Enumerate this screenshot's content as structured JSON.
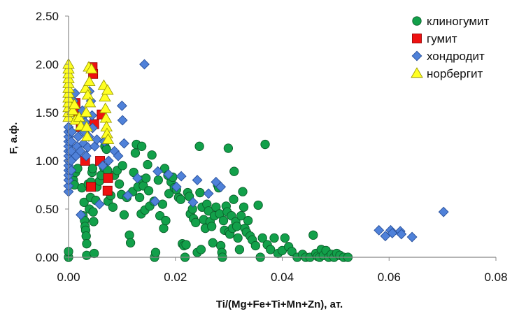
{
  "chart_data": {
    "type": "scatter",
    "xlabel": "Ti/(Mg+Fe+Ti+Mn+Zn), ат.",
    "ylabel": "F, а.ф.",
    "xlim": [
      0,
      0.08
    ],
    "ylim": [
      0,
      2.5
    ],
    "x_ticks": [
      "0.00",
      "0.02",
      "0.04",
      "0.06",
      "0.08"
    ],
    "y_ticks": [
      "0.00",
      "0.50",
      "1.00",
      "1.50",
      "2.00",
      "2.50"
    ],
    "x_tick_values": [
      0,
      0.02,
      0.04,
      0.06,
      0.08
    ],
    "y_tick_values": [
      0,
      0.5,
      1.0,
      1.5,
      2.0,
      2.5
    ],
    "grid": false,
    "legend_position": "top-right",
    "series": [
      {
        "name": "клиногумит",
        "marker": "circle",
        "color": "#12a04a",
        "stroke": "#0b5e2a",
        "points": [
          [
            0.0,
            0.0
          ],
          [
            0.0,
            0.06
          ],
          [
            0.0009,
            0.8
          ],
          [
            0.0011,
            0.75
          ],
          [
            0.0013,
            0.88
          ],
          [
            0.0017,
            0.92
          ],
          [
            0.0025,
            0.72
          ],
          [
            0.0027,
            0.43
          ],
          [
            0.0029,
            0.57
          ],
          [
            0.003,
            0.38
          ],
          [
            0.0031,
            0.32
          ],
          [
            0.0032,
            0.28
          ],
          [
            0.0033,
            0.22
          ],
          [
            0.0034,
            0.14
          ],
          [
            0.0034,
            0.02
          ],
          [
            0.0037,
            0.76
          ],
          [
            0.0039,
            0.5
          ],
          [
            0.0041,
            0.62
          ],
          [
            0.0042,
            0.78
          ],
          [
            0.0044,
            0.88
          ],
          [
            0.0045,
            0.92
          ],
          [
            0.0046,
            0.47
          ],
          [
            0.0047,
            0.37
          ],
          [
            0.0048,
            0.04
          ],
          [
            0.0051,
            0.59
          ],
          [
            0.0053,
            0.73
          ],
          [
            0.0058,
            0.79
          ],
          [
            0.0061,
            0.85
          ],
          [
            0.0066,
            0.93
          ],
          [
            0.0068,
            1.15
          ],
          [
            0.0071,
            1.12
          ],
          [
            0.0073,
            0.9
          ],
          [
            0.0074,
            0.58
          ],
          [
            0.0079,
            0.64
          ],
          [
            0.0083,
            0.52
          ],
          [
            0.0086,
            0.85
          ],
          [
            0.0091,
            0.9
          ],
          [
            0.0095,
            0.76
          ],
          [
            0.0099,
            0.65
          ],
          [
            0.0101,
            0.95
          ],
          [
            0.0104,
            0.44
          ],
          [
            0.0109,
            0.62
          ],
          [
            0.0114,
            0.23
          ],
          [
            0.0116,
            0.15
          ],
          [
            0.012,
            0.68
          ],
          [
            0.0122,
            0.88
          ],
          [
            0.0125,
            1.08
          ],
          [
            0.0127,
            1.17
          ],
          [
            0.013,
            0.73
          ],
          [
            0.0133,
            0.62
          ],
          [
            0.0136,
            0.45
          ],
          [
            0.0137,
            1.15
          ],
          [
            0.0138,
            0.8
          ],
          [
            0.014,
            0.74
          ],
          [
            0.0143,
            0.49
          ],
          [
            0.0145,
            0.82
          ],
          [
            0.0148,
            0.96
          ],
          [
            0.015,
            0.69
          ],
          [
            0.0152,
            0.53
          ],
          [
            0.0156,
            1.06
          ],
          [
            0.016,
            0.58
          ],
          [
            0.0161,
            0.0
          ],
          [
            0.0163,
            0.05
          ],
          [
            0.0168,
            0.8
          ],
          [
            0.0171,
            0.43
          ],
          [
            0.0176,
            0.55
          ],
          [
            0.0178,
            0.3
          ],
          [
            0.018,
            0.92
          ],
          [
            0.0182,
            0.38
          ],
          [
            0.0186,
            0.85
          ],
          [
            0.0188,
            0.66
          ],
          [
            0.0192,
            0.78
          ],
          [
            0.0195,
            0.83
          ],
          [
            0.0198,
            0.72
          ],
          [
            0.0202,
            0.7
          ],
          [
            0.0206,
            0.62
          ],
          [
            0.021,
            0.6
          ],
          [
            0.0213,
            0.14
          ],
          [
            0.0216,
            0.12
          ],
          [
            0.0218,
            0.0
          ],
          [
            0.022,
            0.13
          ],
          [
            0.0223,
            0.67
          ],
          [
            0.0226,
            0.63
          ],
          [
            0.0228,
            0.45
          ],
          [
            0.0232,
            0.5
          ],
          [
            0.0234,
            0.4
          ],
          [
            0.0238,
            0.36
          ],
          [
            0.0241,
            0.05
          ],
          [
            0.0245,
            1.15
          ],
          [
            0.0246,
            0.67
          ],
          [
            0.0248,
            0.08
          ],
          [
            0.025,
            0.52
          ],
          [
            0.0253,
            0.39
          ],
          [
            0.0256,
            0.3
          ],
          [
            0.0259,
            0.55
          ],
          [
            0.0262,
            0.48
          ],
          [
            0.0265,
            0.37
          ],
          [
            0.0268,
            0.32
          ],
          [
            0.027,
            0.15
          ],
          [
            0.0273,
            0.43
          ],
          [
            0.0276,
            0.52
          ],
          [
            0.0279,
            0.75
          ],
          [
            0.0281,
            0.72
          ],
          [
            0.0283,
            0.45
          ],
          [
            0.0285,
            0.12
          ],
          [
            0.0287,
            0.05
          ],
          [
            0.0288,
            0.0
          ],
          [
            0.029,
            0.38
          ],
          [
            0.0292,
            0.28
          ],
          [
            0.0295,
            0.53
          ],
          [
            0.0297,
            0.47
          ],
          [
            0.0299,
            1.13
          ],
          [
            0.03,
            0.26
          ],
          [
            0.0302,
            0.24
          ],
          [
            0.0305,
            0.43
          ],
          [
            0.0307,
            0.3
          ],
          [
            0.0309,
            0.6
          ],
          [
            0.031,
            0.89
          ],
          [
            0.0313,
            0.37
          ],
          [
            0.0315,
            0.32
          ],
          [
            0.0317,
            0.2
          ],
          [
            0.032,
            0.08
          ],
          [
            0.0323,
            0.43
          ],
          [
            0.0326,
            0.68
          ],
          [
            0.0328,
            0.52
          ],
          [
            0.033,
            0.3
          ],
          [
            0.0333,
            0.26
          ],
          [
            0.0336,
            0.38
          ],
          [
            0.034,
            0.22
          ],
          [
            0.0344,
            0.18
          ],
          [
            0.035,
            0.12
          ],
          [
            0.0355,
            0.54
          ],
          [
            0.0359,
            0.0
          ],
          [
            0.0363,
            0.2
          ],
          [
            0.0368,
            1.17
          ],
          [
            0.0372,
            0.13
          ],
          [
            0.0378,
            0.08
          ],
          [
            0.0385,
            0.2
          ],
          [
            0.0392,
            0.04
          ],
          [
            0.04,
            0.07
          ],
          [
            0.0405,
            0.2
          ],
          [
            0.0412,
            0.11
          ],
          [
            0.0418,
            0.06
          ],
          [
            0.0428,
            0.0
          ],
          [
            0.0438,
            0.03
          ],
          [
            0.0444,
            0.0
          ],
          [
            0.0452,
            0.0
          ],
          [
            0.0458,
            0.23
          ],
          [
            0.0463,
            0.04
          ],
          [
            0.0466,
            0.01
          ],
          [
            0.047,
            0.0
          ],
          [
            0.0473,
            0.08
          ],
          [
            0.0477,
            0.02
          ],
          [
            0.0482,
            0.07
          ],
          [
            0.0487,
            0.0
          ],
          [
            0.0492,
            0.03
          ],
          [
            0.0497,
            0.0
          ],
          [
            0.0502,
            0.04
          ],
          [
            0.0508,
            0.02
          ],
          [
            0.0515,
            0.0
          ],
          [
            0.0523,
            0.0
          ]
        ]
      },
      {
        "name": "гумит",
        "marker": "square",
        "color": "#ee1111",
        "stroke": "#990000",
        "points": [
          [
            0.0013,
            1.6
          ],
          [
            0.0018,
            1.5
          ],
          [
            0.0023,
            1.35
          ],
          [
            0.0031,
            1.0
          ],
          [
            0.0042,
            0.73
          ],
          [
            0.0045,
            1.97
          ],
          [
            0.0046,
            1.9
          ],
          [
            0.0048,
            1.38
          ],
          [
            0.0059,
            1.0
          ],
          [
            0.0062,
            1.48
          ],
          [
            0.0073,
            0.69
          ],
          [
            0.0074,
            0.82
          ]
        ]
      },
      {
        "name": "хондродит",
        "marker": "diamond",
        "color": "#4f81d9",
        "stroke": "#28509a",
        "points": [
          [
            0.0,
            0.68
          ],
          [
            0.0,
            0.74
          ],
          [
            0.0,
            0.8
          ],
          [
            0.0,
            0.85
          ],
          [
            0.0,
            0.9
          ],
          [
            0.0,
            0.95
          ],
          [
            0.0,
            1.0
          ],
          [
            0.0,
            1.05
          ],
          [
            0.0,
            1.1
          ],
          [
            0.0,
            1.15
          ],
          [
            0.0,
            1.2
          ],
          [
            0.0,
            1.25
          ],
          [
            0.0,
            1.3
          ],
          [
            0.0,
            1.35
          ],
          [
            0.0,
            1.92
          ],
          [
            0.0,
            1.97
          ],
          [
            0.0005,
            0.9
          ],
          [
            0.0005,
            1.0
          ],
          [
            0.0005,
            1.1
          ],
          [
            0.0005,
            1.2
          ],
          [
            0.0006,
            1.3
          ],
          [
            0.0009,
            1.62
          ],
          [
            0.0012,
            1.7
          ],
          [
            0.0014,
            1.05
          ],
          [
            0.0016,
            1.15
          ],
          [
            0.0018,
            1.25
          ],
          [
            0.0022,
            1.1
          ],
          [
            0.0023,
            0.44
          ],
          [
            0.0024,
            1.35
          ],
          [
            0.0026,
            1.45
          ],
          [
            0.0026,
            1.52
          ],
          [
            0.0028,
            1.18
          ],
          [
            0.0029,
            1.3
          ],
          [
            0.0031,
            1.4
          ],
          [
            0.0033,
            1.05
          ],
          [
            0.0036,
            1.14
          ],
          [
            0.0038,
            1.25
          ],
          [
            0.0039,
            1.72
          ],
          [
            0.0042,
            1.62
          ],
          [
            0.0044,
            1.47
          ],
          [
            0.0045,
            1.34
          ],
          [
            0.0049,
            1.15
          ],
          [
            0.0053,
            1.22
          ],
          [
            0.0058,
            0.55
          ],
          [
            0.0064,
            0.95
          ],
          [
            0.0067,
            1.2
          ],
          [
            0.0075,
            1.0
          ],
          [
            0.0086,
            1.1
          ],
          [
            0.0093,
            1.05
          ],
          [
            0.01,
            1.57
          ],
          [
            0.0101,
            1.42
          ],
          [
            0.0104,
            1.18
          ],
          [
            0.0111,
            0.64
          ],
          [
            0.0129,
            0.82
          ],
          [
            0.0142,
            2.0
          ],
          [
            0.0162,
            0.58
          ],
          [
            0.0167,
            0.89
          ],
          [
            0.0187,
            0.86
          ],
          [
            0.0202,
            0.73
          ],
          [
            0.0211,
            0.84
          ],
          [
            0.0233,
            0.57
          ],
          [
            0.0241,
            0.8
          ],
          [
            0.0262,
            0.66
          ],
          [
            0.0276,
            0.78
          ],
          [
            0.0285,
            0.73
          ],
          [
            0.0581,
            0.28
          ],
          [
            0.0593,
            0.22
          ],
          [
            0.0603,
            0.28
          ],
          [
            0.0606,
            0.25
          ],
          [
            0.0621,
            0.27
          ],
          [
            0.0623,
            0.24
          ],
          [
            0.0643,
            0.21
          ],
          [
            0.0702,
            0.47
          ]
        ]
      },
      {
        "name": "норбергит",
        "marker": "triangle",
        "color": "#ffff22",
        "stroke": "#9a9a00",
        "points": [
          [
            0.0,
            1.45
          ],
          [
            0.0,
            1.5
          ],
          [
            0.0,
            1.55
          ],
          [
            0.0,
            1.6
          ],
          [
            0.0,
            1.65
          ],
          [
            0.0,
            1.7
          ],
          [
            0.0,
            1.75
          ],
          [
            0.0,
            1.8
          ],
          [
            0.0,
            1.85
          ],
          [
            0.0,
            1.9
          ],
          [
            0.0,
            1.95
          ],
          [
            0.0,
            2.0
          ],
          [
            0.0008,
            1.52
          ],
          [
            0.0011,
            1.58
          ],
          [
            0.0013,
            1.42
          ],
          [
            0.002,
            1.45
          ],
          [
            0.0023,
            1.36
          ],
          [
            0.0032,
            1.75
          ],
          [
            0.0033,
            1.5
          ],
          [
            0.0034,
            1.35
          ],
          [
            0.0035,
            1.25
          ],
          [
            0.0036,
            1.68
          ],
          [
            0.0038,
            1.97
          ],
          [
            0.0039,
            1.82
          ],
          [
            0.004,
            1.6
          ],
          [
            0.0043,
            1.95
          ],
          [
            0.0066,
            1.78
          ],
          [
            0.0068,
            1.66
          ],
          [
            0.0069,
            1.54
          ],
          [
            0.007,
            1.44
          ],
          [
            0.0071,
            1.35
          ],
          [
            0.0072,
            1.28
          ],
          [
            0.0073,
            1.73
          ],
          [
            0.0074,
            1.22
          ]
        ]
      }
    ]
  }
}
